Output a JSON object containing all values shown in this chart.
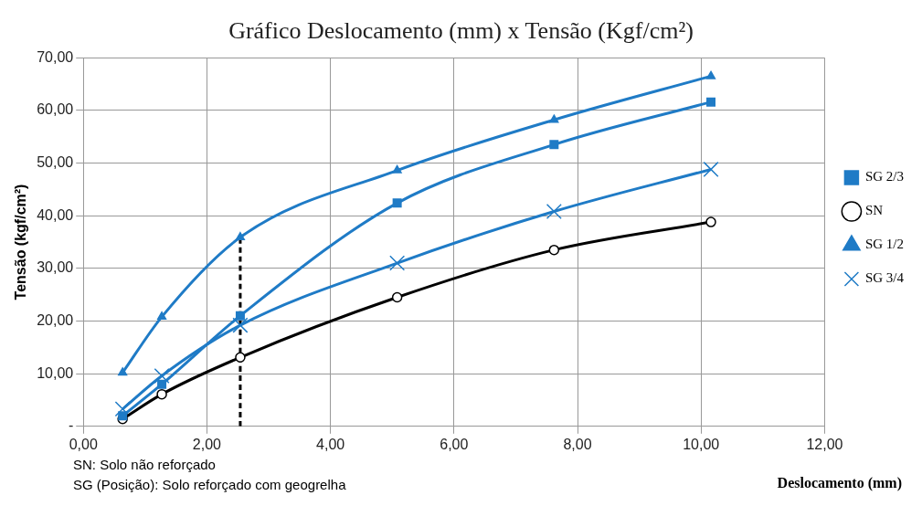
{
  "chart_data": {
    "type": "line",
    "title": "Gráfico Deslocamento (mm) x Tensão (Kgf/cm²)",
    "xlabel": "Deslocamento (mm)",
    "ylabel": "Tensão (kgf/cm²)",
    "x": [
      0.635,
      1.27,
      2.54,
      5.08,
      7.62,
      10.16
    ],
    "series": [
      {
        "name": "SN",
        "color": "#000000",
        "marker": "circle",
        "values": [
          1.4,
          6.1,
          13.1,
          24.5,
          33.5,
          38.8
        ]
      },
      {
        "name": "SG 1/2",
        "color": "#1f7bc6",
        "marker": "triangle",
        "values": [
          10.2,
          20.8,
          35.9,
          48.6,
          58.2,
          66.5
        ]
      },
      {
        "name": "SG 2/3",
        "color": "#1f7bc6",
        "marker": "square",
        "values": [
          2.0,
          8.0,
          21.0,
          42.4,
          53.5,
          61.6
        ]
      },
      {
        "name": "SG 3/4",
        "color": "#1f7bc6",
        "marker": "cross",
        "values": [
          3.3,
          9.6,
          19.2,
          31.0,
          40.8,
          48.8
        ]
      },
      {
        "x": [
          2.54,
          2.54
        ],
        "color": "#000000",
        "line_style": "dashed",
        "marker": "none",
        "values": [
          0,
          35.9
        ]
      }
    ],
    "xlim": [
      0,
      12
    ],
    "xticks": [
      {
        "value": 0,
        "label": "0,00"
      },
      {
        "value": 2,
        "label": "2,00"
      },
      {
        "value": 4,
        "label": "4,00"
      },
      {
        "value": 6,
        "label": "6,00"
      },
      {
        "value": 8,
        "label": "8,00"
      },
      {
        "value": 10,
        "label": "10,00"
      },
      {
        "value": 12,
        "label": "12,00"
      }
    ],
    "ylim": [
      0,
      70
    ],
    "yticks": [
      {
        "value": 0,
        "label": "-"
      },
      {
        "value": 10,
        "label": "10,00"
      },
      {
        "value": 20,
        "label": "20,00"
      },
      {
        "value": 30,
        "label": "30,00"
      },
      {
        "value": 40,
        "label": "40,00"
      },
      {
        "value": 50,
        "label": "50,00"
      },
      {
        "value": 60,
        "label": "60,00"
      },
      {
        "value": 70,
        "label": "70,00"
      }
    ],
    "grid": true,
    "legend": "right",
    "annotations": [
      "SN: Solo não reforçado",
      "SG (Posição): Solo reforçado com geogrelha"
    ]
  }
}
